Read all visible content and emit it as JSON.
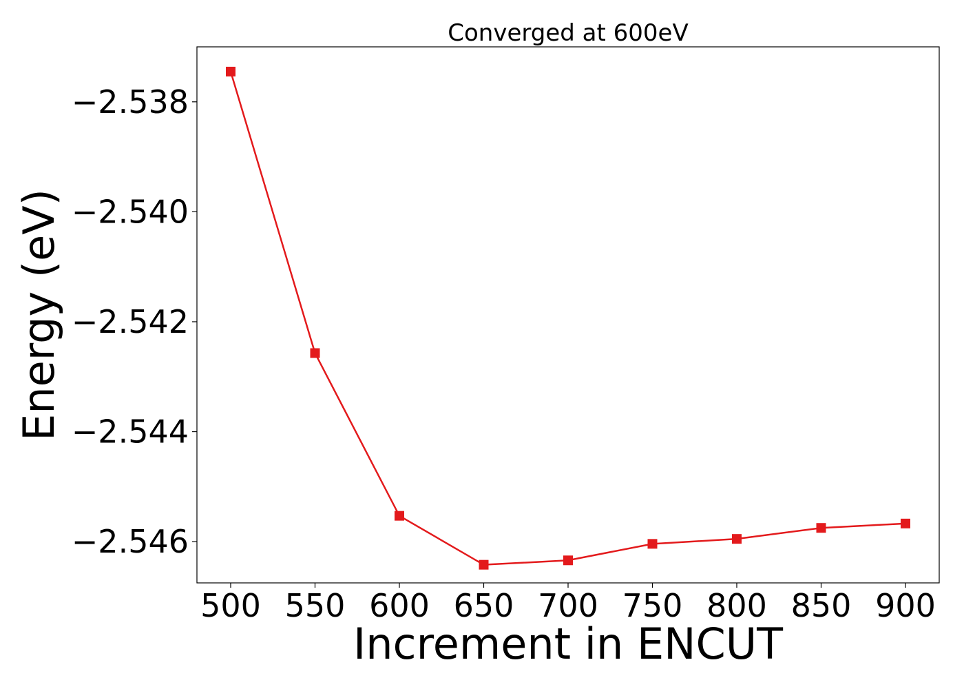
{
  "chart_data": {
    "type": "line",
    "title": "Converged at 600eV",
    "xlabel": "Increment in ENCUT",
    "ylabel": "Energy (eV)",
    "x": [
      500,
      550,
      600,
      650,
      700,
      750,
      800,
      850,
      900
    ],
    "series": [
      {
        "values": [
          -2.53745,
          -2.54257,
          -2.54553,
          -2.54642,
          -2.54634,
          -2.54604,
          -2.54595,
          -2.54575,
          -2.54567
        ],
        "color": "#e31a1c",
        "marker": "square"
      }
    ],
    "xticks": [
      500,
      550,
      600,
      650,
      700,
      750,
      800,
      850,
      900
    ],
    "xtick_labels": [
      "500",
      "550",
      "600",
      "650",
      "700",
      "750",
      "800",
      "850",
      "900"
    ],
    "yticks": [
      -2.538,
      -2.54,
      -2.542,
      -2.544,
      -2.546
    ],
    "ytick_labels": [
      "−2.538",
      "−2.540",
      "−2.542",
      "−2.544",
      "−2.546"
    ],
    "xlim": [
      480,
      920
    ],
    "ylim": [
      -2.54675,
      -2.537
    ],
    "grid": false,
    "legend": "none"
  }
}
